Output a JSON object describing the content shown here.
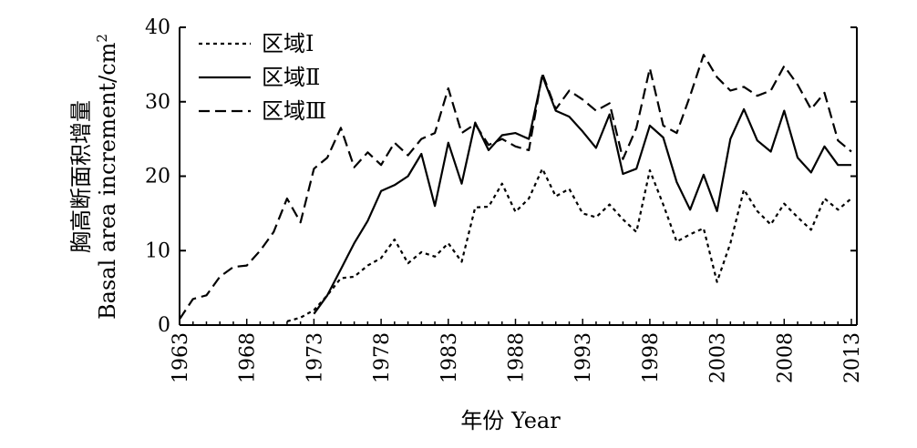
{
  "chart_data": {
    "type": "line",
    "xlabel": "年份 Year",
    "ylabel_cn": "胸高断面积增量",
    "ylabel_en": "Basal area increment/cm",
    "ylabel_sup": "2",
    "xlim": [
      1963,
      2013
    ],
    "ylim": [
      0,
      40
    ],
    "x_ticks": [
      "1963",
      "1968",
      "1973",
      "1978",
      "1983",
      "1988",
      "1993",
      "1998",
      "2003",
      "2008",
      "2013"
    ],
    "y_ticks": [
      "0",
      "10",
      "20",
      "30",
      "40"
    ],
    "legend_position": "top-left",
    "series": [
      {
        "name": "区域Ⅰ",
        "style": "dotted",
        "x": [
          1971,
          1972,
          1973,
          1974,
          1975,
          1976,
          1977,
          1978,
          1979,
          1980,
          1981,
          1982,
          1983,
          1984,
          1985,
          1986,
          1987,
          1988,
          1989,
          1990,
          1991,
          1992,
          1993,
          1994,
          1995,
          1996,
          1997,
          1998,
          1999,
          2000,
          2001,
          2002,
          2003,
          2004,
          2005,
          2006,
          2007,
          2008,
          2009,
          2010,
          2011,
          2012,
          2013
        ],
        "values": [
          0.5,
          1,
          2,
          4,
          6.3,
          6.5,
          8,
          9,
          11.5,
          8.3,
          9.8,
          9.2,
          11,
          8.5,
          15.8,
          15.9,
          19,
          15.2,
          17,
          21,
          17.3,
          18.3,
          15,
          14.5,
          16.2,
          14.2,
          12.5,
          20.8,
          16.2,
          11.2,
          12.2,
          13,
          5.8,
          11,
          18.2,
          15.3,
          13.5,
          16.3,
          14.5,
          12.8,
          17,
          15.5,
          17
        ]
      },
      {
        "name": "区域Ⅱ",
        "style": "solid",
        "x": [
          1973,
          1974,
          1975,
          1976,
          1977,
          1978,
          1979,
          1980,
          1981,
          1982,
          1983,
          1984,
          1985,
          1986,
          1987,
          1988,
          1989,
          1990,
          1991,
          1992,
          1993,
          1994,
          1995,
          1996,
          1997,
          1998,
          1999,
          2000,
          2001,
          2002,
          2003,
          2004,
          2005,
          2006,
          2007,
          2008,
          2009,
          2010,
          2011,
          2012,
          2013
        ],
        "values": [
          1.5,
          4,
          7.5,
          11,
          14,
          18,
          18.8,
          20,
          23,
          16,
          24.5,
          19,
          27.2,
          23.5,
          25.5,
          25.8,
          25,
          33.5,
          28.8,
          28,
          26,
          23.8,
          28.3,
          20.3,
          21,
          26.8,
          25.2,
          19.2,
          15.5,
          20.2,
          15.3,
          25,
          29,
          24.8,
          23.3,
          28.8,
          22.5,
          20.5,
          24,
          21.5,
          21.5
        ]
      },
      {
        "name": "区域Ⅲ",
        "style": "dashed",
        "x": [
          1963,
          1964,
          1965,
          1966,
          1967,
          1968,
          1969,
          1970,
          1971,
          1972,
          1973,
          1974,
          1975,
          1976,
          1977,
          1978,
          1979,
          1980,
          1981,
          1982,
          1983,
          1984,
          1985,
          1986,
          1987,
          1988,
          1989,
          1990,
          1991,
          1992,
          1993,
          1994,
          1995,
          1996,
          1997,
          1998,
          1999,
          2000,
          2001,
          2002,
          2003,
          2004,
          2005,
          2006,
          2007,
          2008,
          2009,
          2010,
          2011,
          2012,
          2013
        ],
        "values": [
          0.8,
          3.5,
          4,
          6.5,
          7.8,
          8,
          10,
          12.5,
          17,
          13.8,
          21,
          22.5,
          26.5,
          21.2,
          23.2,
          21.5,
          24.5,
          22.8,
          25,
          25.8,
          31.8,
          25.8,
          27,
          24.2,
          25,
          24,
          23.5,
          33.8,
          29,
          31.5,
          30.3,
          28.8,
          29.8,
          22.3,
          26.5,
          34.5,
          26.8,
          25.8,
          30.8,
          36.3,
          33.3,
          31.5,
          32,
          30.8,
          31.5,
          34.8,
          32.3,
          29,
          31.2,
          24.8,
          23.3
        ]
      }
    ]
  }
}
